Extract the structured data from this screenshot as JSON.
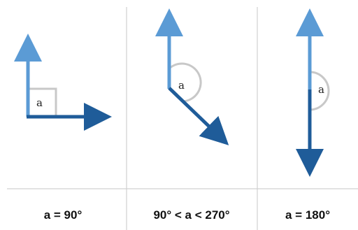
{
  "panels": [
    {
      "angle_label": "a",
      "caption": "a = 90°",
      "angle_deg": 90
    },
    {
      "angle_label": "a",
      "caption": "90° < a < 270°",
      "angle_deg": 135
    },
    {
      "angle_label": "a",
      "caption": "a = 180°",
      "angle_deg": 180
    }
  ],
  "colors": {
    "light_vector": "#5b9bd5",
    "dark_vector": "#1f5c99",
    "arc": "#c8c8c8",
    "divider": "#d0d0d0"
  }
}
